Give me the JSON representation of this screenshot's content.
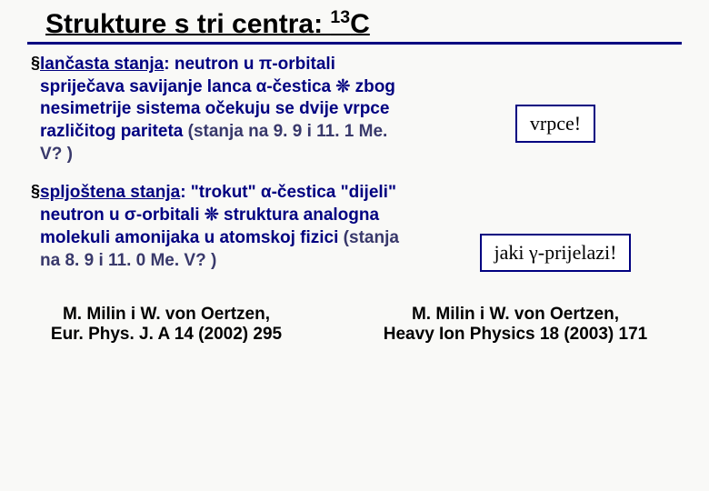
{
  "title_main": "Strukture s tri centra: ",
  "title_sup": "13",
  "title_tail": "C",
  "bullet1": {
    "underline": "lančasta stanja",
    "rest": ": neutron u π-orbitali spriječava savijanje lanca α-čestica ❊ zbog nesimetrije sistema očekuju se dvije vrpce različitog pariteta ",
    "dark": "(stanja na 9. 9 i 11. 1 Me. V? )"
  },
  "bullet2": {
    "underline": "spljoštena stanja",
    "rest": ": \"trokut\" α-čestica \"dijeli\" neutron u σ-orbitali ❊ struktura analogna molekuli amonijaka u atomskoj fizici ",
    "dark": "(stanja na 8. 9 i 11. 0 Me. V? )"
  },
  "callout1": "vrpce!",
  "callout2_a": "jaki ",
  "callout2_b": "γ",
  "callout2_c": "-prijelazi!",
  "ref1_a": "M. Milin i W. von Oertzen,",
  "ref1_b": "Eur. Phys. J. A 14 (2002) 295",
  "ref2_a": "M. Milin i W. von Oertzen,",
  "ref2_b": "Heavy Ion Physics 18 (2003) 171",
  "colors": {
    "navy": "#000080",
    "darknavy": "#39396b",
    "bg": "#f9f9f7"
  }
}
